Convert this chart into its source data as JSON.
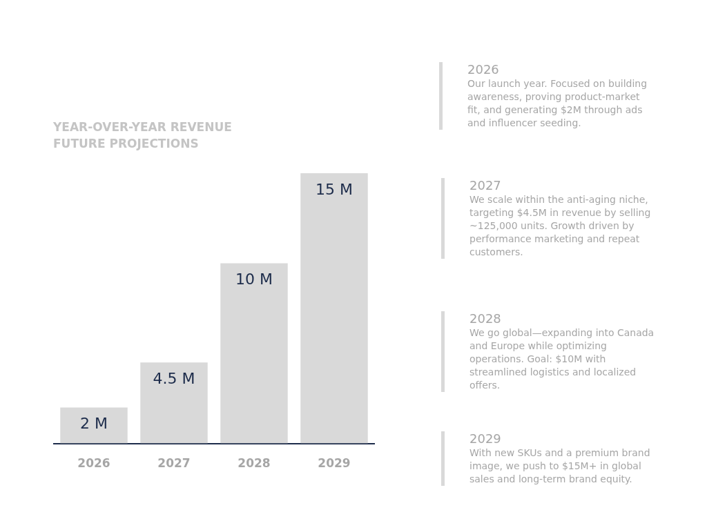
{
  "chart_data": {
    "type": "bar",
    "title": "YEAR-OVER-YEAR REVENUE\nFUTURE PROJECTIONS",
    "categories": [
      "2026",
      "2027",
      "2028",
      "2029"
    ],
    "values": [
      2,
      4.5,
      10,
      15
    ],
    "value_labels": [
      "2 M",
      "4.5 M",
      "10 M",
      "15 M"
    ],
    "color": "#d9d9d9",
    "tick_labels": "x",
    "grid": false,
    "legend": false,
    "annotations": [
      "2026\nOur launch year. Focused on building awareness, proving product-market fit, and generating $2M through ads and influencer seeding.",
      "2027\nWe scale within the anti-aging niche, targeting $4.5M in revenue by selling ~125,000 units. Growth driven by performance marketing and repeat customers.",
      "2028\nWe go global—expanding into Canada and Europe while optimizing operations. Goal: $10M with streamlined logistics and localized offers.",
      "2029\nWith new SKUs and a premium brand image, we push to $15M+ in global sales and long-term brand equity."
    ]
  }
}
